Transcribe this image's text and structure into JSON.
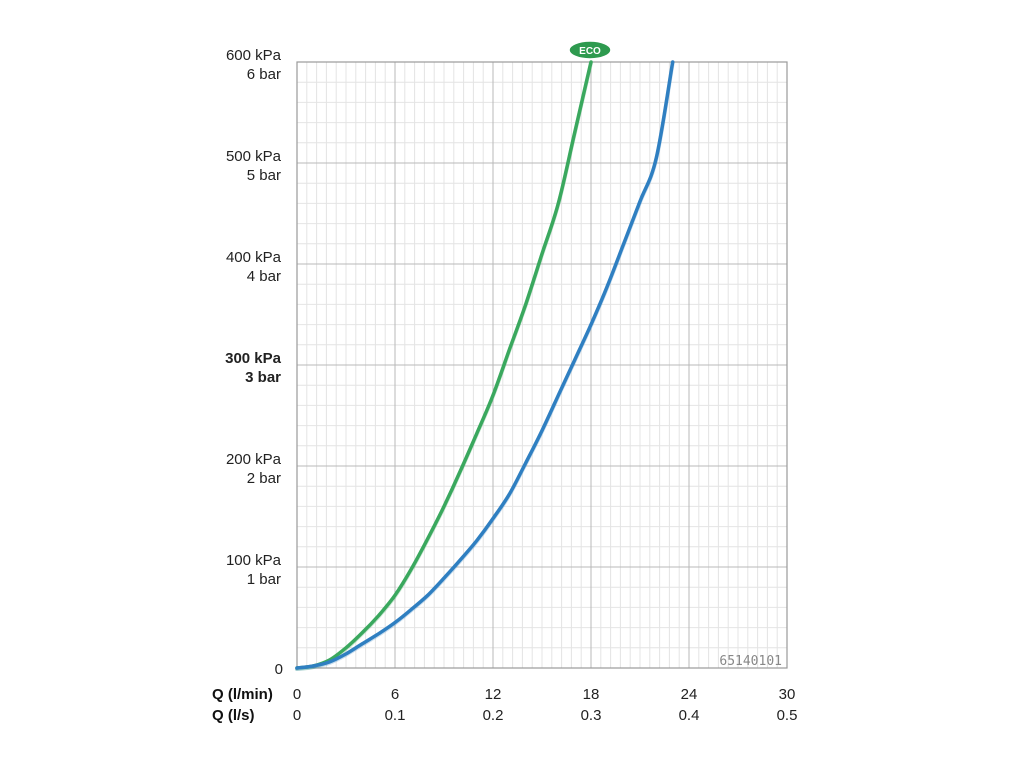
{
  "chart_data": {
    "type": "line",
    "x_primary": {
      "label": "Q (l/min)",
      "range": [
        0,
        30
      ],
      "ticks": [
        "0",
        "6",
        "12",
        "18",
        "24",
        "30"
      ]
    },
    "x_secondary": {
      "label": "Q (l/s)",
      "range": [
        0,
        0.5
      ],
      "ticks": [
        "0",
        "0.1",
        "0.2",
        "0.3",
        "0.4",
        "0.5"
      ]
    },
    "y": {
      "range": [
        0,
        600
      ],
      "unit": "kPa",
      "ticks": [
        {
          "value": 0,
          "line1": "0",
          "line2": "",
          "bold": false
        },
        {
          "value": 100,
          "line1": "100 kPa",
          "line2": "1 bar",
          "bold": false
        },
        {
          "value": 200,
          "line1": "200 kPa",
          "line2": "2 bar",
          "bold": false
        },
        {
          "value": 300,
          "line1": "300 kPa",
          "line2": "3 bar",
          "bold": true
        },
        {
          "value": 400,
          "line1": "400 kPa",
          "line2": "4 bar",
          "bold": false
        },
        {
          "value": 500,
          "line1": "500 kPa",
          "line2": "5 bar",
          "bold": false
        },
        {
          "value": 600,
          "line1": "600 kPa",
          "line2": "6 bar",
          "bold": false
        }
      ]
    },
    "grid": true,
    "series": [
      {
        "color": "#3aa85e",
        "label": "ECO",
        "x": [
          0,
          1,
          2,
          3,
          4,
          5,
          6,
          7,
          8,
          9,
          10,
          11,
          12,
          13,
          14,
          15,
          16,
          17,
          18
        ],
        "y": [
          0,
          2,
          8,
          20,
          35,
          52,
          72,
          98,
          128,
          160,
          195,
          232,
          270,
          315,
          360,
          410,
          460,
          530,
          600
        ]
      },
      {
        "color": "#2f7fc1",
        "x": [
          0,
          1,
          2,
          3,
          4,
          5,
          6,
          7,
          8,
          9,
          10,
          11,
          12,
          13,
          14,
          15,
          16,
          17,
          18,
          19,
          20,
          21,
          22,
          23
        ],
        "y": [
          0,
          2,
          6,
          14,
          24,
          34,
          45,
          58,
          72,
          89,
          107,
          126,
          148,
          172,
          203,
          235,
          270,
          305,
          340,
          378,
          420,
          462,
          505,
          600
        ]
      }
    ],
    "annotations": {
      "eco_badge": "ECO",
      "code": "65140101"
    }
  }
}
